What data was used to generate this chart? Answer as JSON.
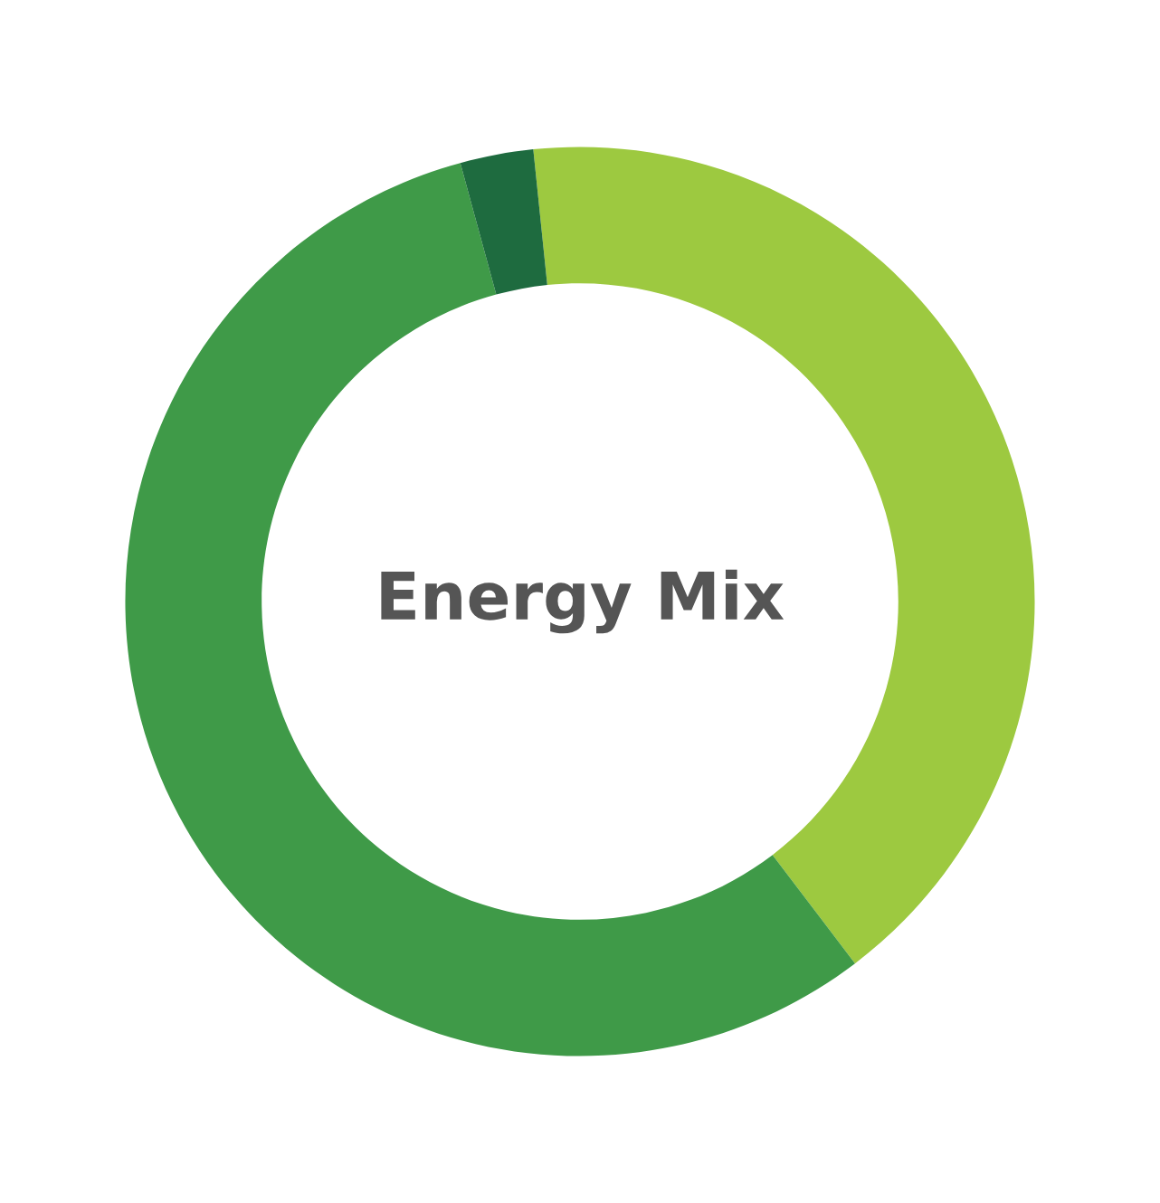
{
  "chart_data": {
    "type": "donut",
    "title": "Energy Mix",
    "categories": [
      null,
      null,
      null
    ],
    "values": [
      41.3,
      56.1,
      2.6
    ],
    "colors": [
      "#9dc940",
      "#3f9a48",
      "#1e6b3f"
    ]
  }
}
